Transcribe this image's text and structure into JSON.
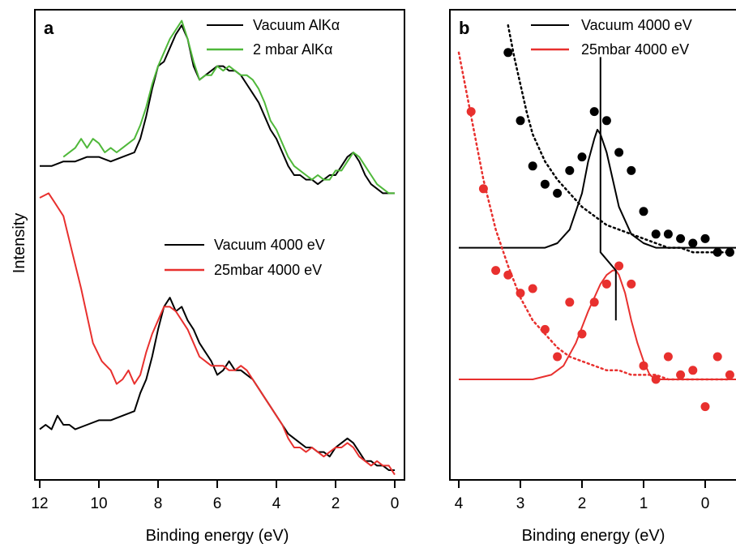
{
  "chart_data": [
    {
      "type": "line",
      "panel_label": "a",
      "xlabel": "Binding energy (eV)",
      "ylabel": "Intensity",
      "xlim": [
        12,
        0
      ],
      "ylim": [
        0,
        1
      ],
      "x_reversed": true,
      "x_ticks": [
        12,
        10,
        8,
        6,
        4,
        2,
        0
      ],
      "grid": false,
      "legends": [
        {
          "placement": "top-right",
          "entries": [
            {
              "name": "Vacuum AlKα",
              "color": "#000000"
            },
            {
              "name": "2 mbar AlKα",
              "color": "#4fb83a"
            }
          ]
        },
        {
          "placement": "middle-right",
          "entries": [
            {
              "name": "Vacuum 4000 eV",
              "color": "#000000"
            },
            {
              "name": "25mbar 4000 eV",
              "color": "#e8302e"
            }
          ]
        }
      ],
      "series": [
        {
          "name": "Vacuum AlKα",
          "color": "#000000",
          "x": [
            12.0,
            11.6,
            11.2,
            10.8,
            10.4,
            10.0,
            9.6,
            9.2,
            8.8,
            8.6,
            8.4,
            8.2,
            8.0,
            7.8,
            7.6,
            7.4,
            7.2,
            7.0,
            6.8,
            6.6,
            6.4,
            6.2,
            6.0,
            5.8,
            5.6,
            5.4,
            5.2,
            5.0,
            4.8,
            4.6,
            4.4,
            4.2,
            4.0,
            3.8,
            3.6,
            3.4,
            3.2,
            3.0,
            2.8,
            2.6,
            2.4,
            2.2,
            2.0,
            1.8,
            1.6,
            1.4,
            1.2,
            1.0,
            0.8,
            0.6,
            0.4,
            0.2,
            0.0
          ],
          "y": [
            0.67,
            0.67,
            0.68,
            0.68,
            0.69,
            0.69,
            0.68,
            0.69,
            0.7,
            0.73,
            0.78,
            0.84,
            0.89,
            0.9,
            0.93,
            0.96,
            0.98,
            0.95,
            0.89,
            0.86,
            0.87,
            0.88,
            0.89,
            0.89,
            0.88,
            0.88,
            0.87,
            0.85,
            0.83,
            0.81,
            0.78,
            0.75,
            0.73,
            0.7,
            0.67,
            0.65,
            0.65,
            0.64,
            0.64,
            0.63,
            0.64,
            0.65,
            0.65,
            0.67,
            0.69,
            0.7,
            0.68,
            0.65,
            0.63,
            0.62,
            0.61,
            0.61,
            0.61
          ]
        },
        {
          "name": "2 mbar AlKα",
          "color": "#4fb83a",
          "x": [
            11.2,
            10.8,
            10.6,
            10.4,
            10.2,
            10.0,
            9.8,
            9.6,
            9.4,
            9.2,
            9.0,
            8.8,
            8.6,
            8.4,
            8.2,
            8.0,
            7.8,
            7.6,
            7.4,
            7.2,
            7.0,
            6.8,
            6.6,
            6.4,
            6.2,
            6.0,
            5.8,
            5.6,
            5.4,
            5.2,
            5.0,
            4.8,
            4.6,
            4.4,
            4.2,
            4.0,
            3.8,
            3.6,
            3.4,
            3.2,
            3.0,
            2.8,
            2.6,
            2.4,
            2.2,
            2.0,
            1.8,
            1.6,
            1.4,
            1.2,
            1.0,
            0.8,
            0.6,
            0.4,
            0.2,
            0.0
          ],
          "y": [
            0.69,
            0.71,
            0.73,
            0.71,
            0.73,
            0.72,
            0.7,
            0.71,
            0.7,
            0.71,
            0.72,
            0.73,
            0.76,
            0.8,
            0.85,
            0.89,
            0.92,
            0.95,
            0.97,
            0.99,
            0.95,
            0.9,
            0.86,
            0.87,
            0.87,
            0.89,
            0.88,
            0.89,
            0.88,
            0.87,
            0.87,
            0.86,
            0.84,
            0.81,
            0.77,
            0.75,
            0.72,
            0.69,
            0.67,
            0.66,
            0.65,
            0.64,
            0.65,
            0.64,
            0.64,
            0.66,
            0.66,
            0.68,
            0.7,
            0.69,
            0.67,
            0.65,
            0.63,
            0.62,
            0.61,
            0.61
          ]
        },
        {
          "name": "Vacuum 4000 eV",
          "color": "#000000",
          "x": [
            12.0,
            11.8,
            11.6,
            11.4,
            11.2,
            11.0,
            10.8,
            10.4,
            10.0,
            9.6,
            9.2,
            8.8,
            8.6,
            8.4,
            8.2,
            8.0,
            7.8,
            7.6,
            7.4,
            7.2,
            7.0,
            6.8,
            6.6,
            6.4,
            6.2,
            6.0,
            5.8,
            5.6,
            5.4,
            5.2,
            5.0,
            4.8,
            4.6,
            4.4,
            4.2,
            4.0,
            3.8,
            3.6,
            3.4,
            3.2,
            3.0,
            2.8,
            2.6,
            2.4,
            2.2,
            2.0,
            1.8,
            1.6,
            1.4,
            1.2,
            1.0,
            0.8,
            0.6,
            0.4,
            0.2,
            0.0
          ],
          "y": [
            0.09,
            0.1,
            0.09,
            0.12,
            0.1,
            0.1,
            0.09,
            0.1,
            0.11,
            0.11,
            0.12,
            0.13,
            0.17,
            0.2,
            0.25,
            0.31,
            0.36,
            0.38,
            0.35,
            0.36,
            0.33,
            0.31,
            0.28,
            0.26,
            0.24,
            0.21,
            0.22,
            0.24,
            0.22,
            0.22,
            0.21,
            0.2,
            0.18,
            0.16,
            0.14,
            0.12,
            0.1,
            0.08,
            0.07,
            0.06,
            0.05,
            0.05,
            0.04,
            0.04,
            0.03,
            0.05,
            0.06,
            0.07,
            0.06,
            0.04,
            0.02,
            0.02,
            0.01,
            0.01,
            0.0,
            0.0
          ]
        },
        {
          "name": "25mbar 4000 eV",
          "color": "#e8302e",
          "x": [
            12.0,
            11.7,
            11.5,
            11.2,
            10.9,
            10.6,
            10.2,
            9.9,
            9.6,
            9.4,
            9.2,
            9.0,
            8.8,
            8.6,
            8.4,
            8.2,
            8.0,
            7.8,
            7.6,
            7.4,
            7.2,
            7.0,
            6.8,
            6.6,
            6.4,
            6.2,
            6.0,
            5.8,
            5.6,
            5.4,
            5.2,
            5.0,
            4.8,
            4.6,
            4.4,
            4.2,
            4.0,
            3.8,
            3.6,
            3.4,
            3.2,
            3.0,
            2.8,
            2.6,
            2.4,
            2.2,
            2.0,
            1.8,
            1.6,
            1.4,
            1.2,
            1.0,
            0.8,
            0.6,
            0.4,
            0.2,
            0.0
          ],
          "y": [
            0.6,
            0.61,
            0.59,
            0.56,
            0.48,
            0.4,
            0.28,
            0.24,
            0.22,
            0.19,
            0.2,
            0.22,
            0.19,
            0.21,
            0.26,
            0.3,
            0.33,
            0.36,
            0.36,
            0.35,
            0.33,
            0.31,
            0.28,
            0.25,
            0.24,
            0.23,
            0.23,
            0.23,
            0.22,
            0.22,
            0.23,
            0.22,
            0.2,
            0.18,
            0.16,
            0.14,
            0.12,
            0.1,
            0.07,
            0.05,
            0.05,
            0.04,
            0.05,
            0.04,
            0.03,
            0.04,
            0.05,
            0.05,
            0.06,
            0.05,
            0.03,
            0.02,
            0.01,
            0.02,
            0.01,
            0.01,
            -0.01
          ]
        }
      ]
    },
    {
      "type": "scatter",
      "panel_label": "b",
      "xlabel": "Binding energy (eV)",
      "xlim": [
        4,
        -0.5
      ],
      "ylim": [
        0,
        1
      ],
      "x_reversed": true,
      "x_ticks": [
        4,
        3,
        2,
        1,
        0
      ],
      "grid": false,
      "legend": {
        "placement": "top-right",
        "entries": [
          {
            "name": "Vacuum 4000 eV",
            "color": "#000000"
          },
          {
            "name": "25mbar 4000 eV",
            "color": "#e8302e"
          }
        ]
      },
      "series": [
        {
          "name": "Vacuum 4000 eV",
          "color": "#000000",
          "kind": "points",
          "x": [
            3.2,
            3.0,
            2.8,
            2.6,
            2.4,
            2.2,
            2.0,
            1.8,
            1.6,
            1.4,
            1.2,
            1.0,
            0.8,
            0.6,
            0.4,
            0.2,
            0.0,
            -0.2,
            -0.4
          ],
          "y": [
            0.92,
            0.77,
            0.67,
            0.63,
            0.61,
            0.66,
            0.69,
            0.79,
            0.77,
            0.7,
            0.66,
            0.57,
            0.52,
            0.52,
            0.51,
            0.5,
            0.51,
            0.48,
            0.48
          ]
        },
        {
          "name": "Vacuum 4000 eV fit",
          "color": "#000000",
          "kind": "solid",
          "x": [
            4.0,
            3.0,
            2.6,
            2.4,
            2.2,
            2.0,
            1.9,
            1.8,
            1.75,
            1.7,
            1.6,
            1.5,
            1.4,
            1.2,
            1.0,
            0.8,
            0.5,
            0.0,
            -0.5
          ],
          "y": [
            0.49,
            0.49,
            0.49,
            0.5,
            0.53,
            0.61,
            0.68,
            0.73,
            0.75,
            0.74,
            0.7,
            0.64,
            0.58,
            0.52,
            0.5,
            0.49,
            0.49,
            0.49,
            0.49
          ]
        },
        {
          "name": "Vacuum 4000 eV background",
          "color": "#000000",
          "kind": "dotted",
          "x": [
            3.2,
            3.1,
            3.0,
            2.9,
            2.8,
            2.7,
            2.6,
            2.5,
            2.4,
            2.2,
            2.0,
            1.8,
            1.6,
            1.4,
            1.2,
            1.0,
            0.8,
            0.6,
            0.4,
            0.2,
            0.0,
            -0.2,
            -0.4
          ],
          "y": [
            0.98,
            0.91,
            0.85,
            0.79,
            0.74,
            0.71,
            0.68,
            0.66,
            0.64,
            0.61,
            0.58,
            0.56,
            0.54,
            0.53,
            0.52,
            0.51,
            0.5,
            0.49,
            0.49,
            0.48,
            0.48,
            0.48,
            0.48
          ]
        },
        {
          "name": "25mbar 4000 eV",
          "color": "#e8302e",
          "kind": "points",
          "x": [
            3.8,
            3.6,
            3.4,
            3.2,
            3.0,
            2.8,
            2.6,
            2.4,
            2.2,
            2.0,
            1.8,
            1.6,
            1.4,
            1.2,
            1.0,
            0.8,
            0.6,
            0.4,
            0.2,
            0.0,
            -0.2,
            -0.4
          ],
          "y": [
            0.79,
            0.62,
            0.44,
            0.43,
            0.39,
            0.4,
            0.31,
            0.25,
            0.37,
            0.3,
            0.37,
            0.41,
            0.45,
            0.41,
            0.23,
            0.2,
            0.25,
            0.21,
            0.22,
            0.14,
            0.25,
            0.21
          ]
        },
        {
          "name": "25mbar 4000 eV fit",
          "color": "#e8302e",
          "kind": "solid",
          "x": [
            4.0,
            2.8,
            2.5,
            2.3,
            2.1,
            1.9,
            1.7,
            1.6,
            1.5,
            1.45,
            1.4,
            1.3,
            1.2,
            1.1,
            1.0,
            0.9,
            0.8,
            0.6,
            0.0,
            -0.5
          ],
          "y": [
            0.2,
            0.2,
            0.21,
            0.23,
            0.28,
            0.35,
            0.41,
            0.43,
            0.44,
            0.44,
            0.43,
            0.39,
            0.33,
            0.28,
            0.24,
            0.21,
            0.2,
            0.2,
            0.2,
            0.2
          ]
        },
        {
          "name": "25mbar 4000 eV background",
          "color": "#e8302e",
          "kind": "dotted",
          "x": [
            4.0,
            3.8,
            3.6,
            3.4,
            3.2,
            3.0,
            2.8,
            2.6,
            2.4,
            2.2,
            2.0,
            1.8,
            1.6,
            1.4,
            1.2,
            1.0,
            0.8,
            0.6,
            0.4,
            0.2,
            0.0,
            -0.2,
            -0.4
          ],
          "y": [
            0.92,
            0.78,
            0.64,
            0.53,
            0.45,
            0.38,
            0.33,
            0.3,
            0.27,
            0.25,
            0.24,
            0.23,
            0.22,
            0.22,
            0.21,
            0.21,
            0.21,
            0.2,
            0.2,
            0.2,
            0.2,
            0.2,
            0.2
          ]
        },
        {
          "name": "peak marker",
          "color": "#000000",
          "kind": "solid",
          "x": [
            1.7,
            1.7,
            1.7,
            1.45,
            1.45
          ],
          "y": [
            0.91,
            0.48,
            0.48,
            0.44,
            0.33
          ]
        }
      ]
    }
  ]
}
